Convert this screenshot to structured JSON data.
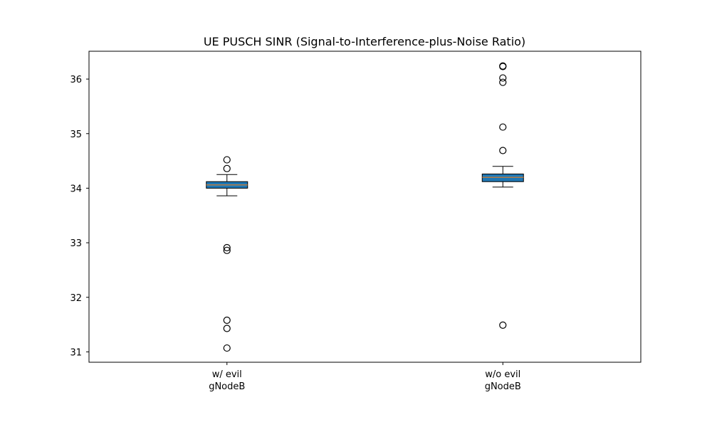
{
  "chart_data": {
    "type": "boxplot",
    "title": "UE PUSCH SINR (Signal-to-Interference-plus-Noise Ratio)",
    "xlabel": "",
    "ylabel": "",
    "ylim": [
      30.81,
      36.51
    ],
    "yticks": [
      31,
      32,
      33,
      34,
      35,
      36
    ],
    "grid": false,
    "box_color": "#1f77b4",
    "median_color": "#ff7f0e",
    "categories": [
      {
        "label_line1": "w/ evil",
        "label_line2": "gNodeB"
      },
      {
        "label_line1": "w/o evil",
        "label_line2": "gNodeB"
      }
    ],
    "boxes": [
      {
        "whisker_low": 33.86,
        "q1": 34.0,
        "median": 34.06,
        "q3": 34.12,
        "whisker_high": 34.25,
        "outliers": [
          34.52,
          34.36,
          32.91,
          32.86,
          31.58,
          31.43,
          31.07
        ]
      },
      {
        "whisker_low": 34.02,
        "q1": 34.12,
        "median": 34.2,
        "q3": 34.26,
        "whisker_high": 34.4,
        "outliers": [
          36.24,
          36.23,
          36.02,
          35.94,
          35.12,
          34.69,
          31.49
        ]
      }
    ]
  }
}
